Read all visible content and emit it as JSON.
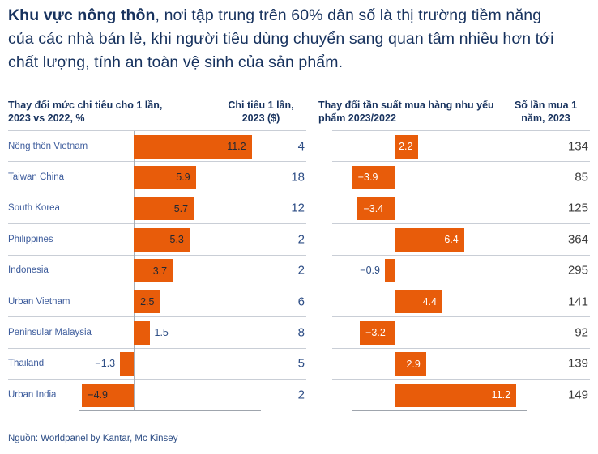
{
  "title": {
    "lead": "Khu vực nông thôn",
    "rest": ", nơi tập trung trên 60% dân số là thị trường tiềm năng của các nhà bán lẻ, khi người tiêu dùng chuyển sang quan tâm nhiều hơn tới chất lượng, tính an toàn vệ sinh của sản phẩm."
  },
  "headers": {
    "spend_change": "Thay đổi mức chi tiêu cho 1 lần, 2023 vs 2022, %",
    "spend_per_trip": "Chi tiêu 1 lần, 2023 ($)",
    "freq_change": "Thay đổi tần suất mua hàng nhu yếu phẩm 2023/2022",
    "trips_per_year": "Số lần mua 1 năm, 2023"
  },
  "source": "Nguồn: Worldpanel by Kantar, Mc Kinsey",
  "colors": {
    "bar_orange": "#E85C0A",
    "navy_dark": "#17325E",
    "category_blue": "#3D5C9C",
    "left_value_navy": "#2E4E86",
    "right_value_gray": "#3B3B3B",
    "inbar_dark": "#222834",
    "inbar_white": "#FFFFFF",
    "separator": "#C9CED6"
  },
  "chart_data": {
    "type": "bar",
    "orientation": "horizontal",
    "title": "",
    "legend": "none",
    "grid": "row-separators",
    "categories": [
      "Nông thôn Vietnam",
      "Taiwan China",
      "South Korea",
      "Philippines",
      "Indonesia",
      "Urban Vietnam",
      "Peninsular Malaysia",
      "Thailand",
      "Urban India"
    ],
    "series": [
      {
        "name": "Thay đổi mức chi tiêu cho 1 lần, 2023 vs 2022, %",
        "display": "bars",
        "values": [
          11.2,
          5.9,
          5.7,
          5.3,
          3.7,
          2.5,
          1.5,
          -1.3,
          -4.9
        ]
      },
      {
        "name": "Chi tiêu 1 lần, 2023 ($)",
        "display": "text-column",
        "values": [
          4,
          18,
          12,
          2,
          2,
          6,
          8,
          5,
          2
        ]
      },
      {
        "name": "Thay đổi tần suất mua hàng nhu yếu phẩm 2023/2022",
        "display": "bars",
        "values": [
          2.2,
          -3.9,
          -3.4,
          6.4,
          -0.9,
          4.4,
          -3.2,
          2.9,
          11.2
        ]
      },
      {
        "name": "Số lần mua 1 năm, 2023",
        "display": "text-column",
        "values": [
          134,
          85,
          125,
          364,
          295,
          141,
          92,
          139,
          149
        ]
      }
    ],
    "xlim_left_chart": [
      -6,
      12
    ],
    "xlim_right_chart": [
      -5,
      13
    ]
  }
}
